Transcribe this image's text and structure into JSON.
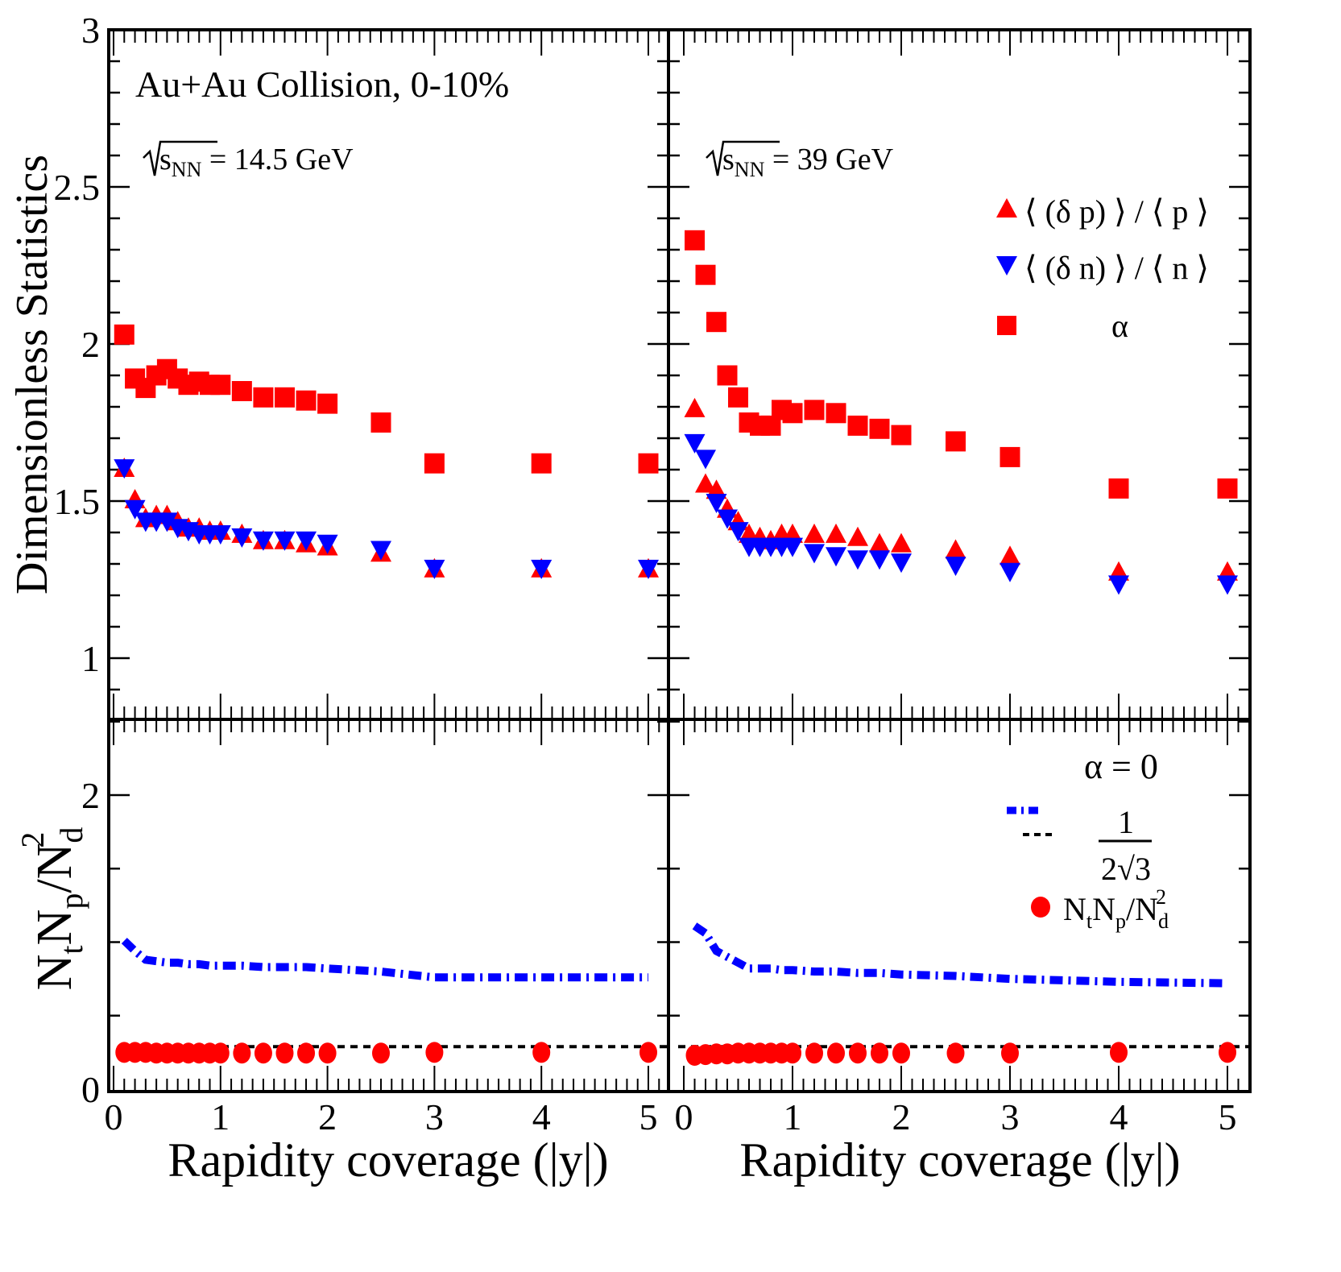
{
  "chart_data": {
    "type": "scatter",
    "title": "",
    "layout": "2x2 panels with shared x axis per column and shared y axis per row",
    "x": [
      0.1,
      0.2,
      0.3,
      0.4,
      0.5,
      0.6,
      0.7,
      0.8,
      0.9,
      1.0,
      1.2,
      1.4,
      1.6,
      1.8,
      2.0,
      2.5,
      3,
      4,
      5
    ],
    "xlabel": "Rapidity coverage (|y|)",
    "xlim": [
      -0.05,
      5.2
    ],
    "xticks": [
      "0",
      "1",
      "2",
      "3",
      "4",
      "5"
    ],
    "top_row": {
      "ylabel": "Dimensionless Statistics",
      "ylim": [
        0.81,
        3.0
      ],
      "yticks": [
        "1",
        "1.5",
        "2",
        "2.5",
        "3"
      ]
    },
    "bottom_row": {
      "ylabel": "N_t N_p / N_d^2",
      "ylim": [
        0,
        2.52
      ],
      "yticks": [
        "0",
        "2"
      ]
    },
    "annotations": {
      "system": "Au+Au Collision, 0-10%",
      "left_energy_prefix": "s",
      "left_energy_sub": "NN",
      "left_energy_value": " = 14.5 GeV",
      "right_energy_prefix": "s",
      "right_energy_sub": "NN",
      "right_energy_value": " = 39 GeV"
    },
    "legend_top": {
      "position": "top-right of right-top panel",
      "entries": [
        {
          "marker": "triangle-up",
          "color": "#ff0000",
          "label": "⟨ (δ p) ⟩ / ⟨ p ⟩"
        },
        {
          "marker": "triangle-down",
          "color": "#0000ff",
          "label": "⟨ (δ n) ⟩ / ⟨ n ⟩"
        },
        {
          "marker": "square",
          "color": "#ff0000",
          "label": "α"
        }
      ]
    },
    "legend_bottom": {
      "position": "top-right of right-bottom panel",
      "entries": [
        {
          "marker": "dash-dot-line",
          "color": "#0000ff",
          "label": "α = 0"
        },
        {
          "marker": "dashed-line",
          "color": "#000000",
          "label_num": "1",
          "label_den": "2√3"
        },
        {
          "marker": "circle",
          "color": "#ff0000",
          "label": "N",
          "label_parts": [
            "N",
            "t",
            "N",
            "p",
            "/N",
            "d",
            "2"
          ]
        }
      ]
    },
    "panels": [
      {
        "id": "top-left",
        "energy": "14.5 GeV",
        "series": [
          {
            "name": "alpha",
            "marker": "square",
            "color": "#ff0000",
            "values": [
              2.03,
              1.89,
              1.86,
              1.9,
              1.92,
              1.89,
              1.87,
              1.88,
              1.87,
              1.87,
              1.85,
              1.83,
              1.83,
              1.82,
              1.81,
              1.75,
              1.62,
              1.62,
              1.62
            ]
          },
          {
            "name": "delta_p_over_p",
            "marker": "triangle-up",
            "color": "#ff0000",
            "values": [
              1.6,
              1.5,
              1.44,
              1.45,
              1.45,
              1.43,
              1.41,
              1.41,
              1.4,
              1.4,
              1.39,
              1.37,
              1.37,
              1.36,
              1.35,
              1.33,
              1.28,
              1.28,
              1.28
            ]
          },
          {
            "name": "delta_n_over_n",
            "marker": "triangle-down",
            "color": "#0000ff",
            "values": [
              1.61,
              1.48,
              1.44,
              1.44,
              1.44,
              1.42,
              1.41,
              1.4,
              1.4,
              1.4,
              1.39,
              1.38,
              1.38,
              1.38,
              1.37,
              1.35,
              1.29,
              1.29,
              1.29
            ]
          }
        ]
      },
      {
        "id": "top-right",
        "energy": "39 GeV",
        "series": [
          {
            "name": "alpha",
            "marker": "square",
            "color": "#ff0000",
            "values": [
              2.33,
              2.22,
              2.07,
              1.9,
              1.83,
              1.75,
              1.74,
              1.74,
              1.79,
              1.78,
              1.79,
              1.78,
              1.74,
              1.73,
              1.71,
              1.69,
              1.64,
              1.54,
              1.54
            ]
          },
          {
            "name": "delta_p_over_p",
            "marker": "triangle-up",
            "color": "#ff0000",
            "values": [
              1.79,
              1.55,
              1.53,
              1.47,
              1.43,
              1.39,
              1.38,
              1.37,
              1.39,
              1.39,
              1.39,
              1.39,
              1.38,
              1.36,
              1.36,
              1.34,
              1.32,
              1.27,
              1.27
            ]
          },
          {
            "name": "delta_n_over_n",
            "marker": "triangle-down",
            "color": "#0000ff",
            "values": [
              1.69,
              1.64,
              1.5,
              1.45,
              1.41,
              1.36,
              1.36,
              1.36,
              1.36,
              1.36,
              1.34,
              1.33,
              1.32,
              1.32,
              1.31,
              1.3,
              1.28,
              1.24,
              1.24
            ]
          }
        ]
      },
      {
        "id": "bottom-left",
        "energy": "14.5 GeV",
        "series": [
          {
            "name": "alpha_zero",
            "type": "line",
            "style": "dash-dot",
            "color": "#0000ff",
            "values": [
              1.01,
              0.94,
              0.88,
              0.87,
              0.86,
              0.86,
              0.85,
              0.85,
              0.84,
              0.84,
              0.84,
              0.83,
              0.83,
              0.83,
              0.82,
              0.8,
              0.76,
              0.76,
              0.76
            ]
          },
          {
            "name": "reference_1_over_2sqrt3",
            "type": "hline",
            "style": "dashed",
            "color": "#000000",
            "value": 0.2887
          },
          {
            "name": "NtNp_over_Nd2",
            "marker": "circle",
            "color": "#ff0000",
            "values": [
              0.25,
              0.25,
              0.25,
              0.245,
              0.245,
              0.245,
              0.245,
              0.245,
              0.245,
              0.245,
              0.245,
              0.245,
              0.245,
              0.245,
              0.245,
              0.245,
              0.25,
              0.25,
              0.25
            ]
          }
        ]
      },
      {
        "id": "bottom-right",
        "energy": "39 GeV",
        "series": [
          {
            "name": "alpha_zero",
            "type": "line",
            "style": "dash-dot",
            "color": "#0000ff",
            "values": [
              1.11,
              1.06,
              0.94,
              0.9,
              0.86,
              0.82,
              0.82,
              0.82,
              0.81,
              0.81,
              0.8,
              0.8,
              0.79,
              0.79,
              0.78,
              0.77,
              0.75,
              0.73,
              0.72
            ]
          },
          {
            "name": "reference_1_over_2sqrt3",
            "type": "hline",
            "style": "dashed",
            "color": "#000000",
            "value": 0.2887
          },
          {
            "name": "NtNp_over_Nd2",
            "marker": "circle",
            "color": "#ff0000",
            "values": [
              0.23,
              0.235,
              0.24,
              0.24,
              0.245,
              0.245,
              0.245,
              0.245,
              0.245,
              0.245,
              0.245,
              0.245,
              0.245,
              0.245,
              0.245,
              0.245,
              0.245,
              0.25,
              0.25
            ]
          }
        ]
      }
    ]
  }
}
